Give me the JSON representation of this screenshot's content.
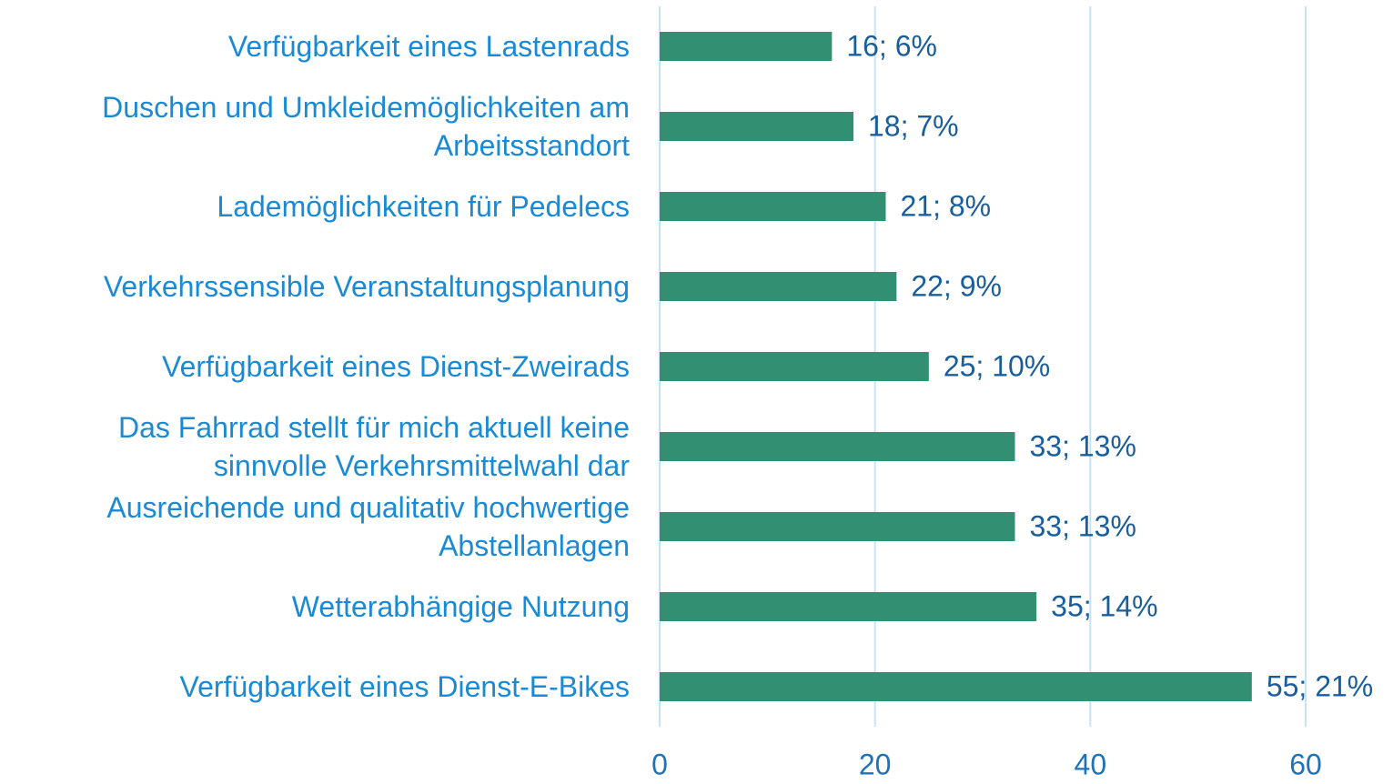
{
  "chart_data": {
    "type": "bar",
    "orientation": "horizontal",
    "categories": [
      "Verfügbarkeit eines Lastenrads",
      "Duschen und Umkleidemöglichkeiten am Arbeitsstandort",
      "Lademöglichkeiten für Pedelecs",
      "Verkehrssensible Veranstaltungsplanung",
      "Verfügbarkeit eines Dienst-Zweirads",
      "Das Fahrrad stellt für mich aktuell keine sinnvolle Verkehrsmittelwahl dar",
      "Ausreichende und qualitativ hochwertige Abstellanlagen",
      "Wetterabhängige Nutzung",
      "Verfügbarkeit eines Dienst-E-Bikes"
    ],
    "values": [
      16,
      18,
      21,
      22,
      25,
      33,
      33,
      35,
      55
    ],
    "value_labels": [
      "16; 6%",
      "18; 7%",
      "21; 8%",
      "22; 9%",
      "25; 10%",
      "33; 13%",
      "33; 13%",
      "35; 14%",
      "55; 21%"
    ],
    "color": "#338f72",
    "xlim": [
      0,
      60
    ],
    "xticks": [
      0,
      20,
      40,
      60
    ],
    "grid": true
  }
}
